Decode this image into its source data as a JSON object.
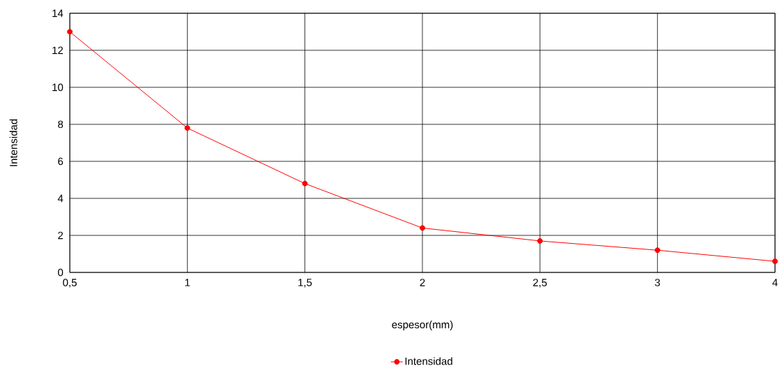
{
  "chart_data": {
    "type": "line",
    "xlabel": "espesor(mm)",
    "ylabel": "Intensidad",
    "categories": [
      "0,5",
      "1",
      "1,5",
      "2",
      "2,5",
      "3",
      "4"
    ],
    "series": [
      {
        "name": "Intensidad",
        "color": "#ff0000",
        "values": [
          13,
          7.8,
          4.8,
          2.4,
          1.7,
          1.2,
          0.6
        ]
      }
    ],
    "ylim": [
      0,
      14
    ],
    "yticks": [
      0,
      2,
      4,
      6,
      8,
      10,
      12,
      14
    ],
    "grid": true,
    "legend": "bottom",
    "marker": "circle",
    "line_style": "solid"
  }
}
